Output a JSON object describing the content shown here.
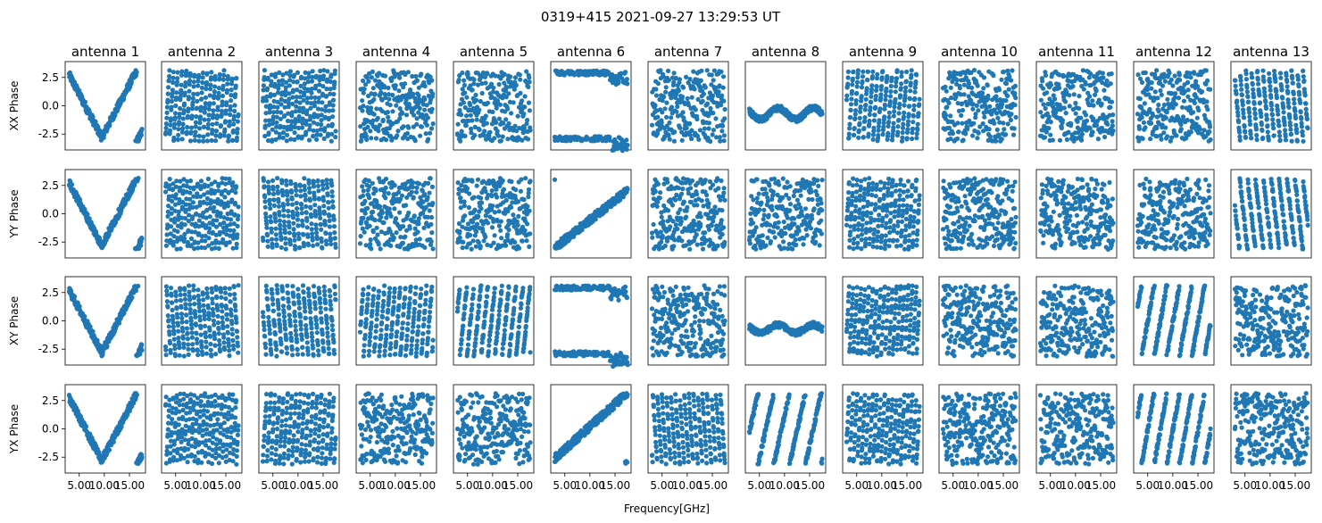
{
  "chart_data": {
    "type": "scatter",
    "title": "0319+415 2021-09-27 13:29:53 UT",
    "xlabel": "Frequency[GHz]",
    "columns": [
      "antenna 1",
      "antenna 2",
      "antenna 3",
      "antenna 4",
      "antenna 5",
      "antenna 6",
      "antenna 7",
      "antenna 8",
      "antenna 9",
      "antenna 10",
      "antenna 11",
      "antenna 12",
      "antenna 13"
    ],
    "rows": [
      "XX Phase",
      "YY Phase",
      "XY Phase",
      "YX Phase"
    ],
    "xlim": [
      2.2,
      18.2
    ],
    "ylim": [
      -3.9,
      3.9
    ],
    "x_ticks": [
      5.0,
      10.0,
      15.0
    ],
    "x_tick_labels": [
      "5.00",
      "10.00",
      "15.00"
    ],
    "y_ticks": [
      2.5,
      0.0,
      -2.5
    ],
    "y_tick_labels": [
      "2.5",
      "0.0",
      "-2.5"
    ],
    "freq_range": [
      3.0,
      17.5
    ],
    "marker_color": "#1f77b4",
    "phase_wrap": [
      -3.14159,
      3.14159
    ],
    "panels": [
      [
        {
          "k": "linear",
          "p": [
            0.16,
            0
          ]
        },
        {
          "k": "wraps",
          "p": [
            7.5
          ]
        },
        {
          "k": "wraps",
          "p": [
            8.5
          ]
        },
        {
          "k": "random",
          "p": []
        },
        {
          "k": "random",
          "p": []
        },
        {
          "k": "wrapedge",
          "p": []
        },
        {
          "k": "random",
          "p": []
        },
        {
          "k": "flat",
          "p": [
            -0.7,
            0.5
          ]
        },
        {
          "k": "wraps",
          "p": [
            6.5
          ]
        },
        {
          "k": "random",
          "p": []
        },
        {
          "k": "random",
          "p": []
        },
        {
          "k": "random",
          "p": []
        },
        {
          "k": "wraps",
          "p": [
            -5.5
          ]
        }
      ],
      [
        {
          "k": "linear",
          "p": [
            0.14,
            0
          ]
        },
        {
          "k": "wraps",
          "p": [
            9
          ]
        },
        {
          "k": "wraps",
          "p": [
            -7
          ]
        },
        {
          "k": "random",
          "p": []
        },
        {
          "k": "random",
          "p": []
        },
        {
          "k": "linear",
          "p": [
            0.35,
            -3
          ]
        },
        {
          "k": "random",
          "p": []
        },
        {
          "k": "random",
          "p": []
        },
        {
          "k": "wraps",
          "p": [
            8
          ]
        },
        {
          "k": "random",
          "p": []
        },
        {
          "k": "random",
          "p": []
        },
        {
          "k": "random",
          "p": []
        },
        {
          "k": "wraps",
          "p": [
            -4
          ]
        }
      ],
      [
        {
          "k": "linear",
          "p": [
            0.14,
            0
          ]
        },
        {
          "k": "wraps",
          "p": [
            -7
          ]
        },
        {
          "k": "wraps",
          "p": [
            -6
          ]
        },
        {
          "k": "wraps",
          "p": [
            6
          ]
        },
        {
          "k": "wraps",
          "p": [
            4.5
          ]
        },
        {
          "k": "wrapedge",
          "p": []
        },
        {
          "k": "random",
          "p": []
        },
        {
          "k": "flat",
          "p": [
            -0.7,
            0.35
          ]
        },
        {
          "k": "wraps",
          "p": [
            8
          ]
        },
        {
          "k": "random",
          "p": []
        },
        {
          "k": "random",
          "p": []
        },
        {
          "k": "wraps",
          "p": [
            2.5
          ]
        },
        {
          "k": "random",
          "p": []
        }
      ],
      [
        {
          "k": "linear",
          "p": [
            0.14,
            0
          ]
        },
        {
          "k": "wraps",
          "p": [
            9
          ]
        },
        {
          "k": "wraps",
          "p": [
            7.5
          ]
        },
        {
          "k": "random",
          "p": []
        },
        {
          "k": "random",
          "p": []
        },
        {
          "k": "linear",
          "p": [
            0.4,
            -2.6
          ]
        },
        {
          "k": "wraps",
          "p": [
            -7
          ]
        },
        {
          "k": "wraps",
          "p": [
            2
          ]
        },
        {
          "k": "wraps",
          "p": [
            8
          ]
        },
        {
          "k": "random",
          "p": []
        },
        {
          "k": "random",
          "p": []
        },
        {
          "k": "wraps",
          "p": [
            2.5
          ]
        },
        {
          "k": "random",
          "p": []
        }
      ]
    ]
  }
}
